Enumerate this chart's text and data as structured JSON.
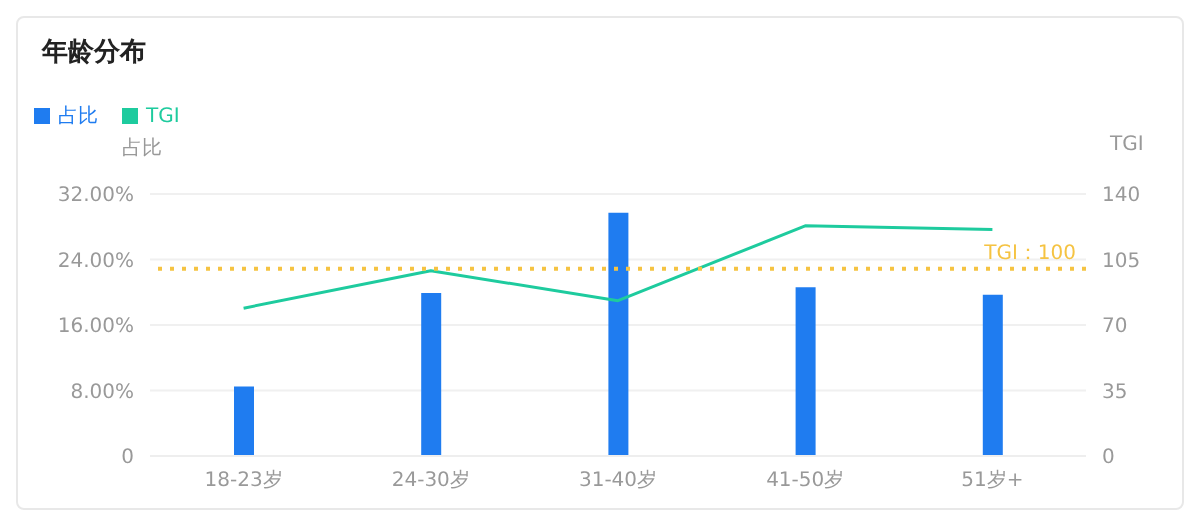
{
  "chart_data": {
    "type": "bar",
    "title": "年龄分布",
    "ylabel": "占比",
    "y2label": "TGI",
    "categories": [
      "18-23岁",
      "24-30岁",
      "31-40岁",
      "41-50岁",
      "51岁+"
    ],
    "series": [
      {
        "name": "占比",
        "color": "#1f7cf0",
        "values": [
          8.5,
          19.9,
          29.7,
          20.6,
          19.7
        ]
      },
      {
        "name": "TGI",
        "type": "line",
        "axis": "y2",
        "color": "#1ecb9e",
        "values": [
          79,
          99,
          83,
          123,
          121
        ]
      }
    ],
    "ylim": [
      0,
      32
    ],
    "yticks": [
      0,
      {
        "value": 8,
        "label": "8.00%"
      },
      {
        "value": 16,
        "label": "16.00%"
      },
      {
        "value": 24,
        "label": "24.00%"
      },
      {
        "value": 32,
        "label": "32.00%"
      }
    ],
    "y2lim": [
      0,
      140
    ],
    "y2ticks": [
      0,
      35,
      70,
      105,
      140
    ],
    "ref_lines": [
      {
        "axis": "y2",
        "value": 100,
        "label": "TGI：100",
        "color": "#f5c342",
        "line_style": "dotted"
      }
    ],
    "grid": "y",
    "legend": "top left",
    "marker": "none"
  }
}
